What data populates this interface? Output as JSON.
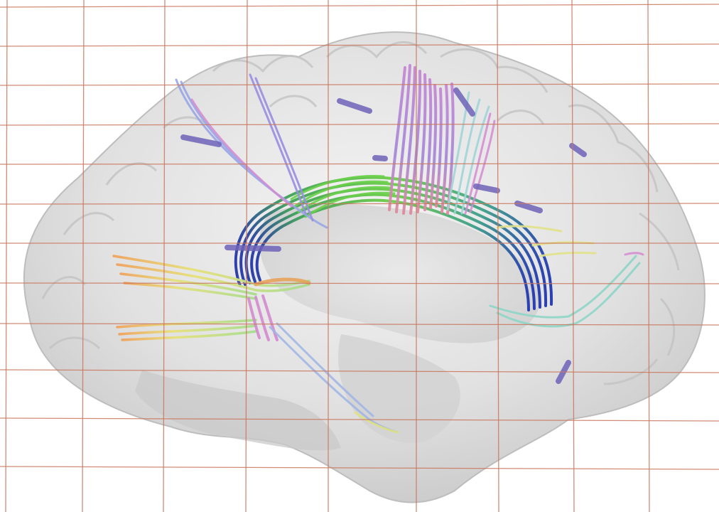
{
  "scene": {
    "subject": "brain-tractography-render",
    "colors": {
      "background": "#ffffff",
      "brain_surface": "#d9d9d9",
      "grid": "#c9775f",
      "fiber_green": "#5fc24a",
      "fiber_blue": "#2b3fb0",
      "fiber_pink": "#d48ad0",
      "fiber_lavender": "#9a8fe0",
      "fiber_yellow": "#e6e27a",
      "fiber_cyan": "#8fd6d6",
      "fiber_orange": "#e9a45a"
    },
    "icons": {
      "brain": "brain-surface-icon",
      "grid": "reference-grid-icon",
      "fibers": "fiber-bundle-icon"
    }
  }
}
